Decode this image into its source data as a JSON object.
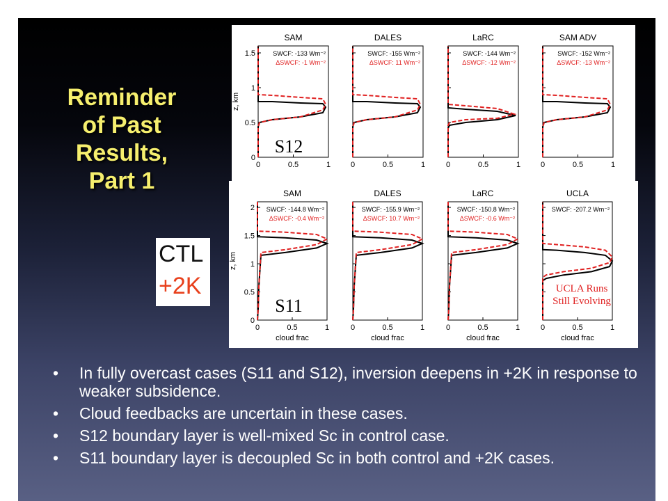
{
  "slide": {
    "title": "Reminder\nof Past\nResults,\nPart 1",
    "legend": {
      "ctl": "CTL",
      "warm": "+2K",
      "ctl_color": "#111111",
      "warm_color": "#e8401c"
    },
    "bullet_symbol": "•",
    "bullets": [
      "In fully overcast cases (S11 and S12), inversion deepens in +2K in response to weaker subsidence.",
      "Cloud feedbacks are uncertain in these cases.",
      "S12 boundary layer is well-mixed Sc in control case.",
      "S11 boundary layer is decoupled Sc in both control and +2K cases."
    ]
  },
  "chart_data": [
    {
      "type": "line",
      "case_label": "S12",
      "ylabel": "z, km",
      "xlabel": "",
      "xlim": [
        0,
        1
      ],
      "ylim": [
        0,
        1.6
      ],
      "xticks": [
        "0",
        "0.5",
        "1"
      ],
      "yticks": [
        "0",
        "0.5",
        "1",
        "1.5"
      ],
      "panels": [
        {
          "title": "SAM",
          "swcf": "SWCF: -133 Wm⁻²",
          "dswcf": "ΔSWCF: -1 Wm⁻²",
          "series": [
            {
              "style": "ctl",
              "x": [
                0,
                0,
                0.02,
                0.2,
                0.6,
                0.92,
                0.96,
                0.92,
                0.6,
                0.2,
                0,
                0
              ],
              "y": [
                0,
                0.44,
                0.5,
                0.54,
                0.58,
                0.64,
                0.72,
                0.77,
                0.78,
                0.8,
                0.8,
                1.6
              ]
            },
            {
              "style": "warm",
              "x": [
                0,
                0,
                0.02,
                0.2,
                0.6,
                0.92,
                0.96,
                0.92,
                0.6,
                0.2,
                0,
                0
              ],
              "y": [
                0,
                0.44,
                0.5,
                0.54,
                0.58,
                0.68,
                0.76,
                0.84,
                0.86,
                0.89,
                0.9,
                1.6
              ]
            }
          ]
        },
        {
          "title": "DALES",
          "swcf": "SWCF: -155 Wm⁻²",
          "dswcf": "ΔSWCF: 11 Wm⁻²",
          "series": [
            {
              "style": "ctl",
              "x": [
                0,
                0,
                0.02,
                0.2,
                0.6,
                0.92,
                0.96,
                0.92,
                0.6,
                0.2,
                0,
                0
              ],
              "y": [
                0,
                0.44,
                0.5,
                0.54,
                0.58,
                0.64,
                0.72,
                0.77,
                0.78,
                0.8,
                0.8,
                1.6
              ]
            },
            {
              "style": "warm",
              "x": [
                0,
                0,
                0.02,
                0.2,
                0.6,
                0.92,
                0.96,
                0.92,
                0.6,
                0.2,
                0,
                0
              ],
              "y": [
                0,
                0.44,
                0.5,
                0.54,
                0.58,
                0.68,
                0.76,
                0.84,
                0.86,
                0.89,
                0.9,
                1.6
              ]
            }
          ]
        },
        {
          "title": "LaRC",
          "swcf": "SWCF: -144 Wm⁻²",
          "dswcf": "ΔSWCF: -12 Wm⁻²",
          "series": [
            {
              "style": "ctl",
              "x": [
                0,
                0,
                0.02,
                0.25,
                0.7,
                0.96,
                0.7,
                0.25,
                0,
                0
              ],
              "y": [
                0,
                0.42,
                0.46,
                0.5,
                0.54,
                0.6,
                0.66,
                0.69,
                0.71,
                1.6
              ]
            },
            {
              "style": "warm",
              "x": [
                0,
                0,
                0.02,
                0.25,
                0.7,
                0.94,
                0.7,
                0.25,
                0,
                0
              ],
              "y": [
                0,
                0.46,
                0.5,
                0.54,
                0.56,
                0.62,
                0.7,
                0.74,
                0.76,
                1.6
              ]
            }
          ]
        },
        {
          "title": "SAM ADV",
          "swcf": "SWCF: -152 Wm⁻²",
          "dswcf": "ΔSWCF: -13 Wm⁻²",
          "series": [
            {
              "style": "ctl",
              "x": [
                0,
                0,
                0.02,
                0.2,
                0.6,
                0.92,
                0.96,
                0.92,
                0.6,
                0.2,
                0,
                0
              ],
              "y": [
                0,
                0.44,
                0.5,
                0.54,
                0.58,
                0.64,
                0.72,
                0.77,
                0.78,
                0.8,
                0.8,
                1.6
              ]
            },
            {
              "style": "warm",
              "x": [
                0,
                0,
                0.02,
                0.2,
                0.6,
                0.92,
                0.96,
                0.92,
                0.6,
                0.2,
                0,
                0
              ],
              "y": [
                0,
                0.44,
                0.5,
                0.54,
                0.58,
                0.68,
                0.76,
                0.84,
                0.86,
                0.89,
                0.9,
                1.6
              ]
            }
          ]
        }
      ]
    },
    {
      "type": "line",
      "case_label": "S11",
      "ylabel": "z, km",
      "xlabel": "cloud frac",
      "xlim": [
        0,
        1
      ],
      "ylim": [
        0,
        2.1
      ],
      "xticks": [
        "0",
        "0.5",
        "1"
      ],
      "yticks": [
        "0",
        "0.5",
        "1",
        "1.5",
        "2"
      ],
      "note": "UCLA Runs\nStill Evolving",
      "panels": [
        {
          "title": "SAM",
          "swcf": "SWCF: -144.8 Wm⁻²",
          "dswcf": "ΔSWCF: -0.4 Wm⁻²",
          "series": [
            {
              "style": "ctl",
              "x": [
                0,
                0.01,
                0.02,
                0.05,
                0.4,
                0.85,
                1.0,
                0.85,
                0.4,
                0,
                0
              ],
              "y": [
                0,
                0.2,
                0.6,
                1.15,
                1.2,
                1.28,
                1.36,
                1.42,
                1.46,
                1.48,
                2.1
              ]
            },
            {
              "style": "warm",
              "x": [
                0,
                0.01,
                0.02,
                0.05,
                0.4,
                0.85,
                1.0,
                0.85,
                0.4,
                0,
                0
              ],
              "y": [
                0,
                0.2,
                0.6,
                1.2,
                1.25,
                1.34,
                1.44,
                1.52,
                1.56,
                1.58,
                2.1
              ]
            }
          ]
        },
        {
          "title": "DALES",
          "swcf": "SWCF: -155.9 Wm⁻²",
          "dswcf": "ΔSWCF: 10.7 Wm⁻²",
          "series": [
            {
              "style": "ctl",
              "x": [
                0,
                0.01,
                0.02,
                0.05,
                0.4,
                0.85,
                1.0,
                0.85,
                0.4,
                0,
                0
              ],
              "y": [
                0,
                0.2,
                0.6,
                1.15,
                1.2,
                1.28,
                1.36,
                1.42,
                1.46,
                1.48,
                2.1
              ]
            },
            {
              "style": "warm",
              "x": [
                0,
                0.01,
                0.02,
                0.05,
                0.4,
                0.85,
                1.0,
                0.85,
                0.4,
                0,
                0
              ],
              "y": [
                0,
                0.2,
                0.6,
                1.2,
                1.25,
                1.34,
                1.44,
                1.52,
                1.56,
                1.58,
                2.1
              ]
            }
          ]
        },
        {
          "title": "LaRC",
          "swcf": "SWCF: -150.8 Wm⁻²",
          "dswcf": "ΔSWCF: -0.6 Wm⁻²",
          "series": [
            {
              "style": "ctl",
              "x": [
                0,
                0.01,
                0.02,
                0.05,
                0.4,
                0.85,
                1.0,
                0.85,
                0.4,
                0,
                0
              ],
              "y": [
                0,
                0.2,
                0.6,
                1.15,
                1.2,
                1.28,
                1.36,
                1.42,
                1.46,
                1.48,
                2.1
              ]
            },
            {
              "style": "warm",
              "x": [
                0,
                0.01,
                0.02,
                0.05,
                0.4,
                0.85,
                1.0,
                0.85,
                0.4,
                0,
                0
              ],
              "y": [
                0,
                0.2,
                0.6,
                1.2,
                1.25,
                1.34,
                1.44,
                1.52,
                1.56,
                1.58,
                2.1
              ]
            }
          ]
        },
        {
          "title": "UCLA",
          "swcf": "SWCF: -207.2 Wm⁻²",
          "dswcf": "",
          "series": [
            {
              "style": "ctl",
              "x": [
                0,
                0,
                0.05,
                0.3,
                0.7,
                0.96,
                1.0,
                0.9,
                0.6,
                0.2,
                0,
                0
              ],
              "y": [
                0,
                0.7,
                0.74,
                0.8,
                0.86,
                0.95,
                1.05,
                1.15,
                1.2,
                1.24,
                1.25,
                2.1
              ]
            },
            {
              "style": "warm",
              "x": [
                0,
                0,
                0.05,
                0.3,
                0.7,
                0.96,
                1.0,
                0.9,
                0.6,
                0.2,
                0,
                0
              ],
              "y": [
                0,
                0.76,
                0.8,
                0.86,
                0.92,
                1.02,
                1.12,
                1.24,
                1.3,
                1.34,
                1.36,
                2.1
              ]
            }
          ]
        }
      ]
    }
  ]
}
